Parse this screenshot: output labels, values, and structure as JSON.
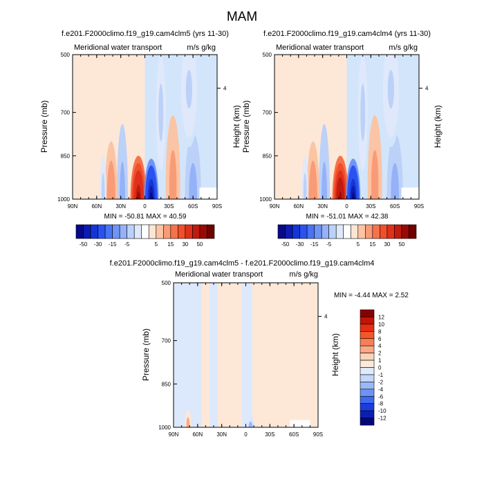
{
  "page_title": "MAM",
  "chart_data": [
    {
      "type": "heatmap",
      "title": "f.e201.F2000climo.f19_g19.cam4clm5 (yrs 11-30)",
      "subtitle_left": "Meridional water transport",
      "subtitle_right": "m/s g/kg",
      "ylabel": "Pressure (mb)",
      "ylabel_right": "Height (km)",
      "x_ticks": [
        "90N",
        "60N",
        "30N",
        "0",
        "30S",
        "60S",
        "90S"
      ],
      "y_ticks": [
        "500",
        "700",
        "850",
        "1000"
      ],
      "y_right_ticks": [
        "4"
      ],
      "xlim": [
        90,
        -90
      ],
      "ylim": [
        1000,
        500
      ],
      "stats": "MIN = -50.81  MAX =  40.59",
      "blobs": [
        {
          "lat": 8,
          "p": 1000,
          "value": 40.59,
          "lat_w": 10,
          "p_w": 150
        },
        {
          "lat": -8,
          "p": 1000,
          "value": -50.81,
          "lat_w": 9,
          "p_w": 140
        },
        {
          "lat": 28,
          "p": 1000,
          "value": -8,
          "lat_w": 7,
          "p_w": 260
        },
        {
          "lat": 42,
          "p": 1000,
          "value": 9,
          "lat_w": 8,
          "p_w": 200
        },
        {
          "lat": -35,
          "p": 950,
          "value": 7,
          "lat_w": 9,
          "p_w": 240
        },
        {
          "lat": -20,
          "p": 700,
          "value": -3,
          "lat_w": 6,
          "p_w": 200
        },
        {
          "lat": 52,
          "p": 970,
          "value": -3,
          "lat_w": 4,
          "p_w": 120
        },
        {
          "lat": -60,
          "p": 980,
          "value": -7,
          "lat_w": 10,
          "p_w": 210
        },
        {
          "lat": -55,
          "p": 620,
          "value": -2.5,
          "lat_w": 12,
          "p_w": 200
        }
      ],
      "background_split_lat": 0,
      "background_north": 0.5,
      "background_south": -0.5,
      "missing_box": {
        "lat_from": -68,
        "lat_to": -90,
        "p_from": 960,
        "p_to": 1000
      }
    },
    {
      "type": "heatmap",
      "title": "f.e201.F2000climo.f19_g19.cam4clm4 (yrs 11-30)",
      "subtitle_left": "Meridional water transport",
      "subtitle_right": "m/s g/kg",
      "ylabel": "Pressure (mb)",
      "ylabel_right": "Height (km)",
      "x_ticks": [
        "90N",
        "60N",
        "30N",
        "0",
        "30S",
        "60S",
        "90S"
      ],
      "y_ticks": [
        "500",
        "700",
        "850",
        "1000"
      ],
      "y_right_ticks": [
        "4"
      ],
      "xlim": [
        90,
        -90
      ],
      "ylim": [
        1000,
        500
      ],
      "stats": "MIN = -51.01  MAX =  42.38",
      "blobs": [
        {
          "lat": 8,
          "p": 1000,
          "value": 42.38,
          "lat_w": 10,
          "p_w": 150
        },
        {
          "lat": -8,
          "p": 1000,
          "value": -51.01,
          "lat_w": 9,
          "p_w": 140
        },
        {
          "lat": 28,
          "p": 1000,
          "value": -8,
          "lat_w": 7,
          "p_w": 260
        },
        {
          "lat": 42,
          "p": 1000,
          "value": 9,
          "lat_w": 8,
          "p_w": 200
        },
        {
          "lat": -35,
          "p": 950,
          "value": 7,
          "lat_w": 9,
          "p_w": 240
        },
        {
          "lat": -20,
          "p": 700,
          "value": -3,
          "lat_w": 6,
          "p_w": 200
        },
        {
          "lat": 52,
          "p": 970,
          "value": -3,
          "lat_w": 4,
          "p_w": 120
        },
        {
          "lat": -60,
          "p": 980,
          "value": -7,
          "lat_w": 10,
          "p_w": 210
        },
        {
          "lat": -55,
          "p": 620,
          "value": -2.5,
          "lat_w": 12,
          "p_w": 200
        }
      ],
      "background_split_lat": 0,
      "background_north": 0.5,
      "background_south": -0.5,
      "missing_box": {
        "lat_from": -68,
        "lat_to": -90,
        "p_from": 960,
        "p_to": 1000
      }
    },
    {
      "type": "heatmap",
      "title": "f.e201.F2000climo.f19_g19.cam4clm5 - f.e201.F2000climo.f19_g19.cam4clm4",
      "subtitle_left": "Meridional water transport",
      "subtitle_right": "m/s g/kg",
      "ylabel": "Pressure (mb)",
      "ylabel_right": "Height (km)",
      "x_ticks": [
        "90N",
        "60N",
        "30N",
        "0",
        "30S",
        "60S",
        "90S"
      ],
      "y_ticks": [
        "500",
        "700",
        "850",
        "1000"
      ],
      "y_right_ticks": [
        "4"
      ],
      "xlim": [
        90,
        -90
      ],
      "ylim": [
        1000,
        500
      ],
      "stats": "MIN = -4.44  MAX =   2.52",
      "stripes": [
        {
          "lat_from": 90,
          "lat_to": 55,
          "value": -0.5
        },
        {
          "lat_from": 55,
          "lat_to": 45,
          "value": 0.5
        },
        {
          "lat_from": 45,
          "lat_to": 35,
          "value": -0.5
        },
        {
          "lat_from": 35,
          "lat_to": 5,
          "value": 0.5
        },
        {
          "lat_from": 5,
          "lat_to": -8,
          "value": -0.5
        },
        {
          "lat_from": -8,
          "lat_to": -90,
          "value": 0.5
        }
      ],
      "blobs": [
        {
          "lat": 72,
          "p": 990,
          "value": 1.5,
          "lat_w": 4,
          "p_w": 50
        },
        {
          "lat": -6,
          "p": 1000,
          "value": -2,
          "lat_w": 5,
          "p_w": 40
        }
      ],
      "missing_box": {
        "lat_from": -55,
        "lat_to": -80,
        "p_from": 975,
        "p_to": 1000
      }
    }
  ],
  "colorbar_main": {
    "labels": [
      "-50",
      "-30",
      "-15",
      "-5",
      "5",
      "15",
      "30",
      "50"
    ],
    "colors": [
      "#08088a",
      "#0c1bb0",
      "#1536d6",
      "#2a52f0",
      "#4a74f5",
      "#6f94f7",
      "#95b2f8",
      "#bcd1f8",
      "#dfe9fb",
      "#ffffff",
      "#fde5d3",
      "#fbc4a4",
      "#f99b76",
      "#f5734c",
      "#f04f2a",
      "#e0301a",
      "#c11a0e",
      "#9a0a05",
      "#6e0000"
    ]
  },
  "colorbar_diff": {
    "labels": [
      "12",
      "10",
      "8",
      "6",
      "4",
      "2",
      "1",
      "0",
      "-1",
      "-2",
      "-4",
      "-6",
      "-8",
      "-10",
      "-12"
    ],
    "colors": [
      "#8a0000",
      "#c01507",
      "#e62f10",
      "#f5552a",
      "#f87f55",
      "#fba985",
      "#fdd3b8",
      "#fbe9dc",
      "#dfeafb",
      "#c2d7f9",
      "#9ab8f7",
      "#6f93f4",
      "#3f69ef",
      "#1b3ddb",
      "#0a20b5",
      "#06067d"
    ]
  }
}
